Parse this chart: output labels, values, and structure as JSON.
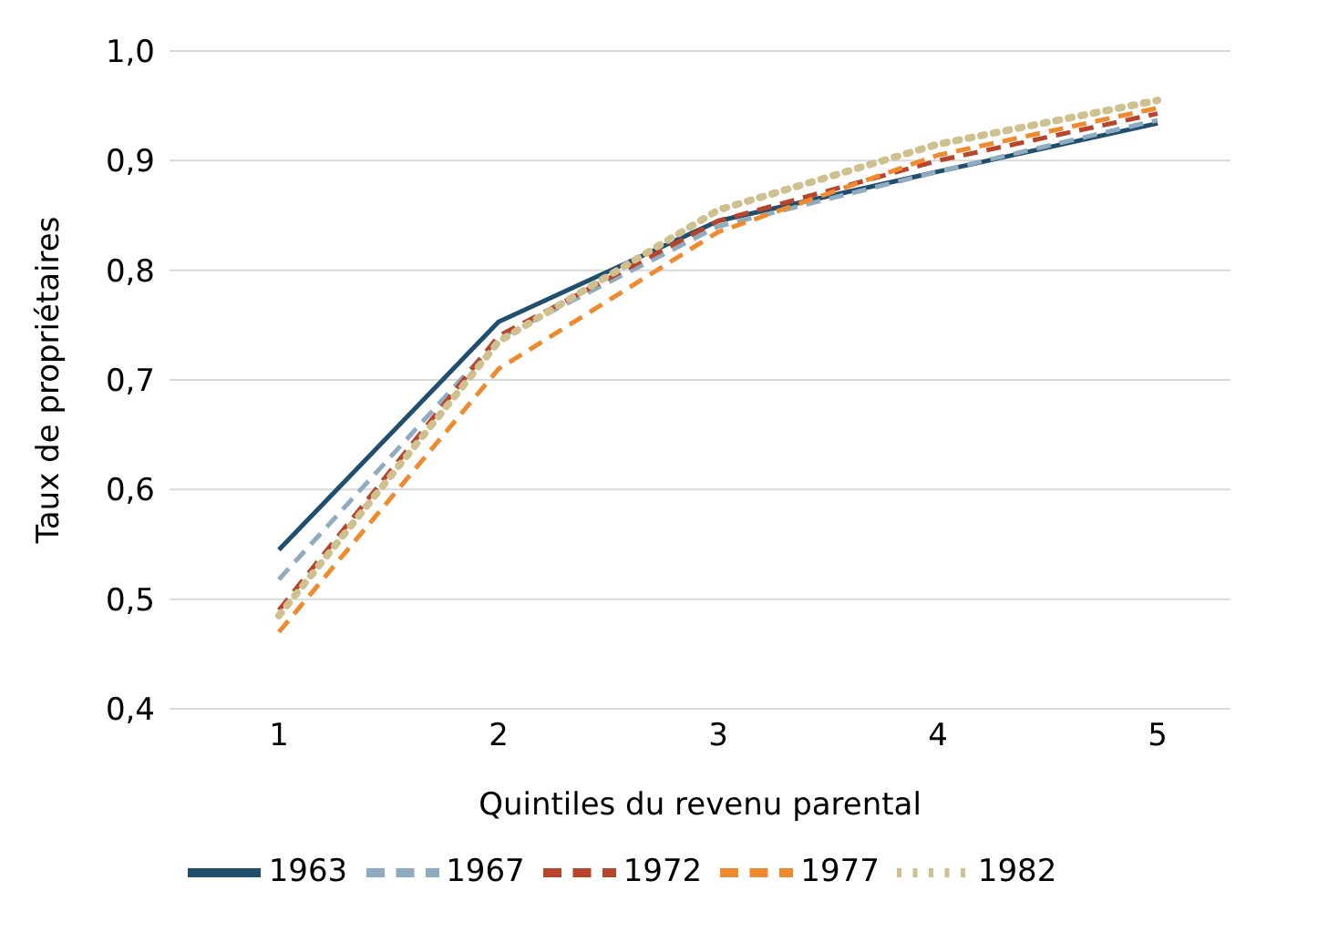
{
  "chart_data": {
    "type": "line",
    "xlabel": "Quintiles du revenu parental",
    "ylabel": "Taux de propriétaires",
    "categories": [
      "1",
      "2",
      "3",
      "4",
      "5"
    ],
    "series": [
      {
        "name": "1963",
        "color": "#1f4e6e",
        "line_style": "solid",
        "values": [
          0.545,
          0.753,
          0.845,
          0.89,
          0.934
        ]
      },
      {
        "name": "1967",
        "color": "#8fabbf",
        "line_style": "dashed",
        "values": [
          0.518,
          0.738,
          0.84,
          0.89,
          0.937
        ]
      },
      {
        "name": "1972",
        "color": "#b8442c",
        "line_style": "dashed",
        "values": [
          0.49,
          0.74,
          0.845,
          0.9,
          0.943
        ]
      },
      {
        "name": "1977",
        "color": "#ef8a2e",
        "line_style": "dashed",
        "values": [
          0.47,
          0.71,
          0.835,
          0.905,
          0.948
        ]
      },
      {
        "name": "1982",
        "color": "#cfc08f",
        "line_style": "dotted",
        "values": [
          0.485,
          0.735,
          0.855,
          0.915,
          0.955
        ]
      }
    ],
    "ylim": [
      0.4,
      1.0
    ],
    "yticks": [
      {
        "value": 0.4,
        "label": "0,4"
      },
      {
        "value": 0.5,
        "label": "0,5"
      },
      {
        "value": 0.6,
        "label": "0,6"
      },
      {
        "value": 0.7,
        "label": "0,7"
      },
      {
        "value": 0.8,
        "label": "0,8"
      },
      {
        "value": 0.9,
        "label": "0,9"
      },
      {
        "value": 1.0,
        "label": "1,0"
      }
    ],
    "grid": "y",
    "legend": "bottom",
    "marker": "none"
  }
}
